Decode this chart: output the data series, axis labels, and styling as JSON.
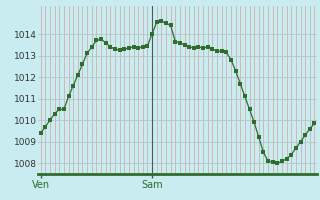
{
  "background_color": "#c8ecf0",
  "plot_bg_color": "#c8ecf0",
  "line_color": "#2d6e2d",
  "marker_color": "#2d6e2d",
  "vgrid_color": "#d4a0a0",
  "hgrid_color": "#b0c8cc",
  "bottom_line_color": "#2d6e2d",
  "sam_line_color": "#555555",
  "ylim": [
    1007.5,
    1015.3
  ],
  "yticks": [
    1008,
    1009,
    1010,
    1011,
    1012,
    1013,
    1014
  ],
  "xlabel_labels": [
    "Ven",
    "Sam"
  ],
  "values": [
    1009.4,
    1009.7,
    1010.0,
    1010.3,
    1010.5,
    1010.5,
    1011.1,
    1011.6,
    1012.1,
    1012.6,
    1013.1,
    1013.4,
    1013.7,
    1013.75,
    1013.6,
    1013.4,
    1013.3,
    1013.25,
    1013.3,
    1013.35,
    1013.4,
    1013.35,
    1013.4,
    1013.45,
    1014.0,
    1014.55,
    1014.6,
    1014.5,
    1014.4,
    1013.65,
    1013.6,
    1013.5,
    1013.4,
    1013.35,
    1013.4,
    1013.35,
    1013.4,
    1013.3,
    1013.2,
    1013.2,
    1013.15,
    1012.8,
    1012.3,
    1011.7,
    1011.1,
    1010.5,
    1009.9,
    1009.2,
    1008.5,
    1008.1,
    1008.05,
    1008.0,
    1008.1,
    1008.2,
    1008.4,
    1008.7,
    1009.0,
    1009.3,
    1009.6,
    1009.85
  ],
  "n_points": 60,
  "sam_idx": 24
}
